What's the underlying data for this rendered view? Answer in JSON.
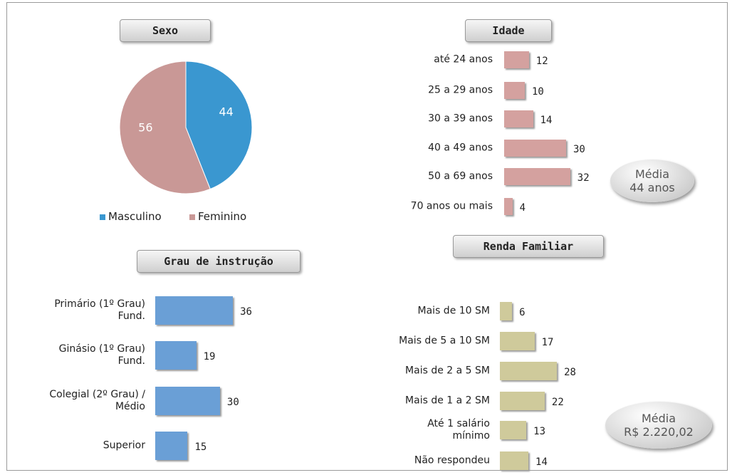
{
  "chart_data": [
    {
      "type": "pie",
      "title": "Sexo",
      "categories": [
        "Masculino",
        "Feminino"
      ],
      "values": [
        44,
        56
      ],
      "colors": [
        "#3a97d0",
        "#c99896"
      ]
    },
    {
      "type": "bar",
      "title": "Idade",
      "categories": [
        "até 24 anos",
        "25 a 29 anos",
        "30 a 39 anos",
        "40 a 49 anos",
        "50 a 69 anos",
        "70 anos ou mais"
      ],
      "values": [
        12,
        10,
        14,
        30,
        32,
        4
      ],
      "color": "#d4a19f",
      "annotation": [
        "Média",
        "44 anos"
      ]
    },
    {
      "type": "bar",
      "title": "Grau de instrução",
      "categories": [
        "Primário (1º Grau)\nFund.",
        "Ginásio (1º Grau)\nFund.",
        "Colegial (2º Grau) /\nMédio",
        "Superior"
      ],
      "values": [
        36,
        19,
        30,
        15
      ],
      "color": "#6a9fd6"
    },
    {
      "type": "bar",
      "title": "Renda Familiar",
      "categories": [
        "Mais de 10 SM",
        "Mais de 5 a 10 SM",
        "Mais de 2 a 5 SM",
        "Mais de 1 a 2 SM",
        "Até 1 salário\nmínimo",
        "Não respondeu"
      ],
      "values": [
        6,
        17,
        28,
        22,
        13,
        14
      ],
      "color": "#cfca9b",
      "annotation": [
        "Média",
        "R$ 2.220,02"
      ]
    }
  ]
}
